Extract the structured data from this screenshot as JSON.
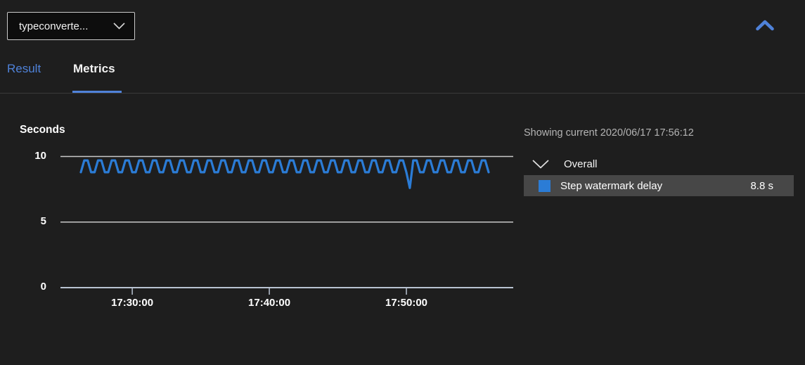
{
  "header": {
    "step_selector": {
      "value": "typeconverte...",
      "icon": "chevron-down"
    },
    "collapse_icon": "chevron-up"
  },
  "tabs": [
    {
      "label": "Result",
      "active": false
    },
    {
      "label": "Metrics",
      "active": true
    }
  ],
  "legend": {
    "showing_current": "Showing current 2020/06/17 17:56:12",
    "group": {
      "label": "Overall",
      "icon": "chevron-down",
      "expanded": true
    },
    "metrics": [
      {
        "label": "Step watermark delay",
        "value": "8.8 s",
        "color": "#2b7cd6",
        "selected": true
      }
    ]
  },
  "colors": {
    "accent_blue": "#4f82d9",
    "line_blue": "#2b7cd6",
    "grid_color": "#c9c9c9",
    "axis_color": "#b9c3d2",
    "row_highlight": "#474747",
    "page_bg": "#1e1e1e"
  },
  "chart_data": {
    "type": "line",
    "title": "Seconds",
    "xlabel": "",
    "ylabel": "Seconds",
    "ylim": [
      0,
      10
    ],
    "yticks": [
      0,
      5,
      10
    ],
    "xticks": [
      "17:30:00",
      "17:40:00",
      "17:50:00"
    ],
    "grid": true,
    "legend_position": "right",
    "x_start": "17:26:15",
    "x_end": "17:56:00",
    "x_step_seconds": 15,
    "series": [
      {
        "name": "Step watermark delay",
        "color": "#2b7cd6",
        "values": [
          8.8,
          9.7,
          9.7,
          8.8,
          8.8,
          9.7,
          9.7,
          8.8,
          8.8,
          9.7,
          9.7,
          8.8,
          8.8,
          9.7,
          9.7,
          8.8,
          8.8,
          9.7,
          9.7,
          8.8,
          8.8,
          9.7,
          9.7,
          8.8,
          8.8,
          9.7,
          9.7,
          8.8,
          8.8,
          9.7,
          9.7,
          8.8,
          8.8,
          9.7,
          9.7,
          8.8,
          8.8,
          9.7,
          9.7,
          8.8,
          8.8,
          9.7,
          9.7,
          8.8,
          8.8,
          9.7,
          9.7,
          8.8,
          8.8,
          9.7,
          9.7,
          8.8,
          8.8,
          9.7,
          9.7,
          8.8,
          8.8,
          9.7,
          9.7,
          8.8,
          8.8,
          9.7,
          9.7,
          8.8,
          8.8,
          9.7,
          9.7,
          8.8,
          8.8,
          9.7,
          9.7,
          8.8,
          8.8,
          9.7,
          9.7,
          8.8,
          8.8,
          9.7,
          9.7,
          8.8,
          8.8,
          9.7,
          9.7,
          8.8,
          8.8,
          9.7,
          9.7,
          8.8,
          8.8,
          9.7,
          9.7,
          8.8,
          8.8,
          9.7,
          9.7,
          8.8,
          7.6,
          9.7,
          9.7,
          8.8,
          8.8,
          9.7,
          9.7,
          8.8,
          8.8,
          9.7,
          9.7,
          8.8,
          8.8,
          9.7,
          9.7,
          8.8,
          8.8,
          9.7,
          9.7,
          8.8,
          8.8,
          9.7,
          9.7,
          8.8
        ]
      }
    ]
  }
}
